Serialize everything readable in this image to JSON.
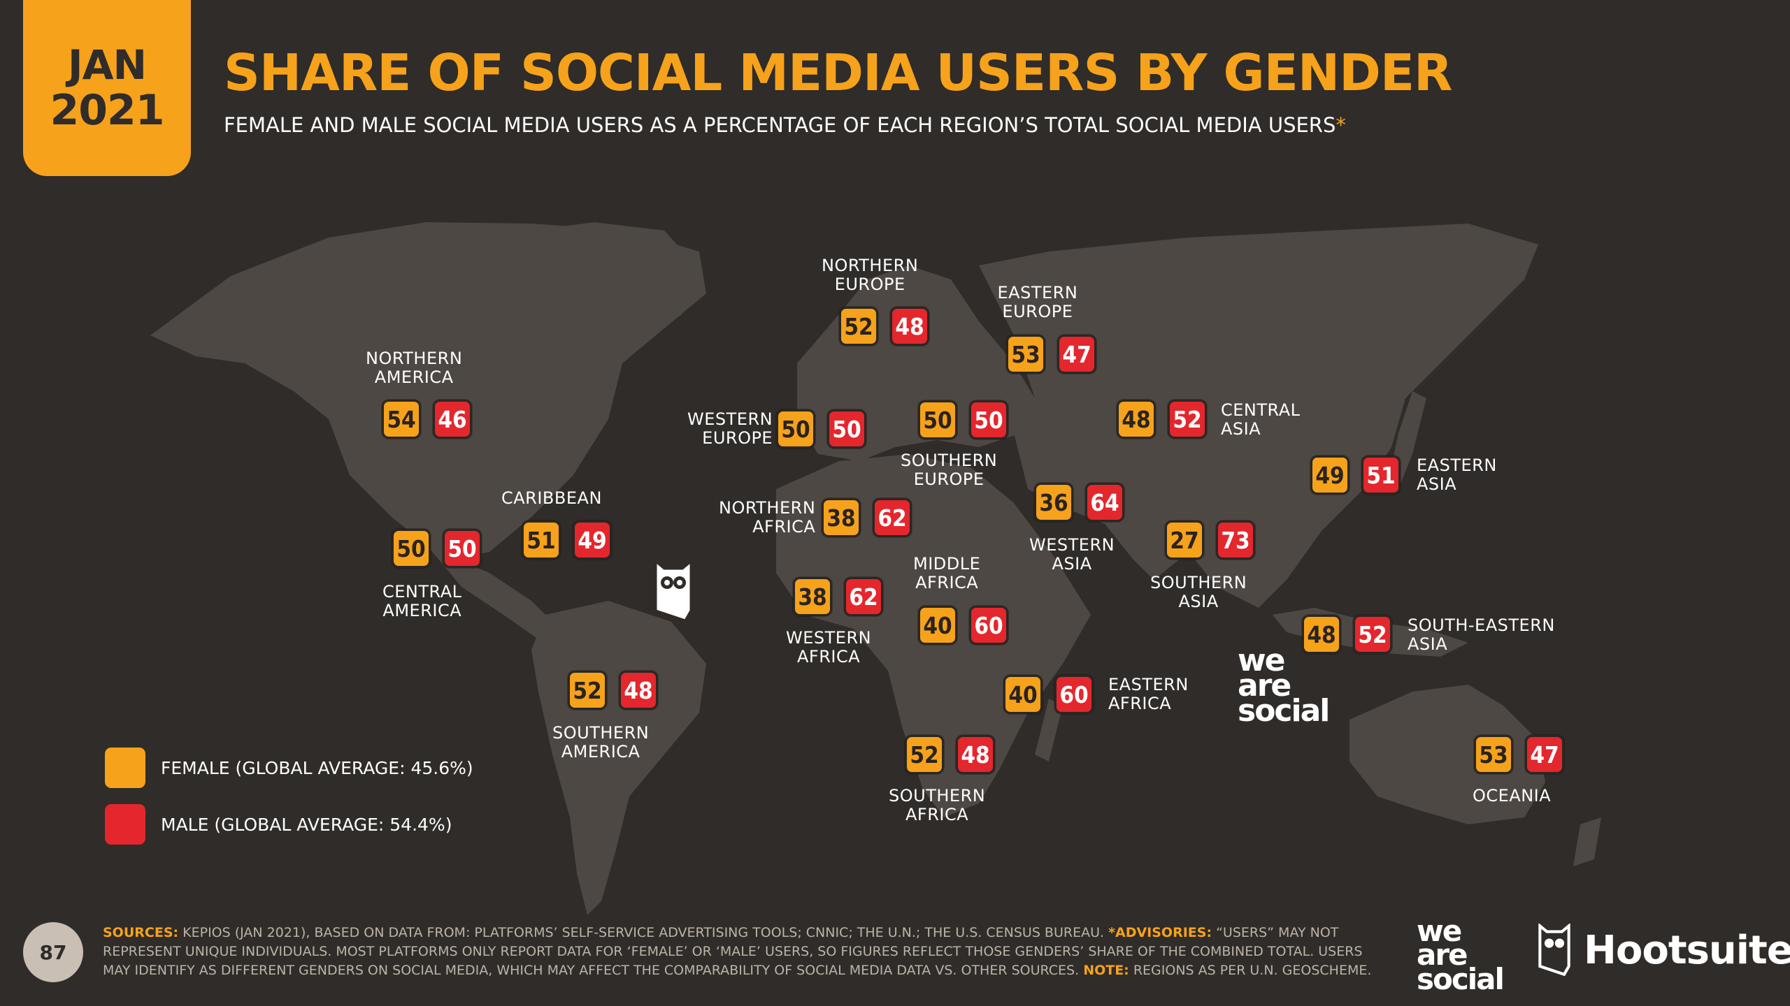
{
  "header": {
    "date_month": "JAN",
    "date_year": "2021",
    "title": "SHARE OF SOCIAL MEDIA USERS BY GENDER",
    "subtitle": "FEMALE AND MALE SOCIAL MEDIA USERS AS A PERCENTAGE OF EACH REGION’S TOTAL SOCIAL MEDIA USERS",
    "subtitle_asterisk": "*"
  },
  "colors": {
    "background": "#2f2c29",
    "map_land": "#4d4843",
    "female": "#f7a21b",
    "male": "#e4262d"
  },
  "chart_data": {
    "type": "table",
    "columns": [
      "Female",
      "Male"
    ],
    "regions": [
      {
        "name": "NORTHERN AMERICA",
        "line1": "NORTHERN",
        "line2": "AMERICA",
        "female": 54,
        "male": 46
      },
      {
        "name": "CENTRAL AMERICA",
        "line1": "CENTRAL",
        "line2": "AMERICA",
        "female": 50,
        "male": 50
      },
      {
        "name": "CARIBBEAN",
        "line1": "CARIBBEAN",
        "line2": "",
        "female": 51,
        "male": 49
      },
      {
        "name": "SOUTHERN AMERICA",
        "line1": "SOUTHERN",
        "line2": "AMERICA",
        "female": 52,
        "male": 48
      },
      {
        "name": "NORTHERN EUROPE",
        "line1": "NORTHERN",
        "line2": "EUROPE",
        "female": 52,
        "male": 48
      },
      {
        "name": "WESTERN EUROPE",
        "line1": "WESTERN",
        "line2": "EUROPE",
        "female": 50,
        "male": 50
      },
      {
        "name": "SOUTHERN EUROPE",
        "line1": "SOUTHERN",
        "line2": "EUROPE",
        "female": 50,
        "male": 50
      },
      {
        "name": "EASTERN EUROPE",
        "line1": "EASTERN",
        "line2": "EUROPE",
        "female": 53,
        "male": 47
      },
      {
        "name": "NORTHERN AFRICA",
        "line1": "NORTHERN",
        "line2": "AFRICA",
        "female": 38,
        "male": 62
      },
      {
        "name": "WESTERN AFRICA",
        "line1": "WESTERN",
        "line2": "AFRICA",
        "female": 38,
        "male": 62
      },
      {
        "name": "MIDDLE AFRICA",
        "line1": "MIDDLE",
        "line2": "AFRICA",
        "female": 40,
        "male": 60
      },
      {
        "name": "EASTERN AFRICA",
        "line1": "EASTERN",
        "line2": "AFRICA",
        "female": 40,
        "male": 60
      },
      {
        "name": "SOUTHERN AFRICA",
        "line1": "SOUTHERN",
        "line2": "AFRICA",
        "female": 52,
        "male": 48
      },
      {
        "name": "WESTERN ASIA",
        "line1": "WESTERN",
        "line2": "ASIA",
        "female": 36,
        "male": 64
      },
      {
        "name": "CENTRAL ASIA",
        "line1": "CENTRAL",
        "line2": "ASIA",
        "female": 48,
        "male": 52
      },
      {
        "name": "SOUTHERN ASIA",
        "line1": "SOUTHERN",
        "line2": "ASIA",
        "female": 27,
        "male": 73
      },
      {
        "name": "EASTERN ASIA",
        "line1": "EASTERN",
        "line2": "ASIA",
        "female": 49,
        "male": 51
      },
      {
        "name": "SOUTH-EASTERN ASIA",
        "line1": "SOUTH-EASTERN",
        "line2": "ASIA",
        "female": 48,
        "male": 52
      },
      {
        "name": "OCEANIA",
        "line1": "OCEANIA",
        "line2": "",
        "female": 53,
        "male": 47
      }
    ],
    "legend": [
      {
        "label": "FEMALE (GLOBAL AVERAGE: 45.6%)",
        "color": "#f7a21b"
      },
      {
        "label": "MALE (GLOBAL AVERAGE: 54.4%)",
        "color": "#e4262d"
      }
    ],
    "global_average": {
      "female": 45.6,
      "male": 54.4
    }
  },
  "footer": {
    "page_number": "87",
    "sources_label": "SOURCES:",
    "sources_text": "KEPIOS (JAN 2021), BASED ON DATA FROM: PLATFORMS’ SELF-SERVICE ADVERTISING TOOLS; CNNIC; THE U.N.; THE U.S. CENSUS BUREAU.",
    "advisories_label": "*ADVISORIES:",
    "advisories_text": "“USERS” MAY NOT REPRESENT UNIQUE INDIVIDUALS. MOST PLATFORMS ONLY REPORT DATA FOR ‘FEMALE’ OR ‘MALE’ USERS, SO FIGURES REFLECT THOSE GENDERS’ SHARE OF THE COMBINED TOTAL. USERS MAY IDENTIFY AS DIFFERENT GENDERS ON SOCIAL MEDIA, WHICH MAY AFFECT THE COMPARABILITY OF SOCIAL MEDIA DATA vs. OTHER SOURCES.",
    "note_label": "NOTE:",
    "note_text": "REGIONS AS PER U.N. GEOSCHEME."
  },
  "logos": {
    "we_are_social": [
      "we",
      "are",
      "social"
    ],
    "hootsuite": "Hootsuite",
    "hootsuite_mark": "®"
  },
  "icons": [
    "owl-icon",
    "hootsuite-owl-icon"
  ]
}
